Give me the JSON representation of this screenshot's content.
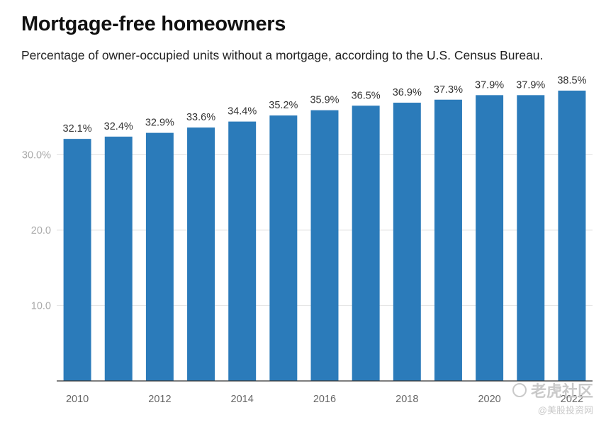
{
  "chart_data": {
    "type": "bar",
    "title": "Mortgage-free homeowners",
    "subtitle": "Percentage of owner-occupied units without a mortgage, according to the U.S. Census Bureau.",
    "categories": [
      "2010",
      "2011",
      "2012",
      "2013",
      "2014",
      "2015",
      "2016",
      "2017",
      "2018",
      "2019",
      "2020",
      "2021",
      "2022"
    ],
    "values": [
      32.1,
      32.4,
      32.9,
      33.6,
      34.4,
      35.2,
      35.9,
      36.5,
      36.9,
      37.3,
      37.9,
      37.9,
      38.5
    ],
    "data_labels": [
      "32.1%",
      "32.4%",
      "32.9%",
      "33.6%",
      "34.4%",
      "35.2%",
      "35.9%",
      "36.5%",
      "36.9%",
      "37.3%",
      "37.9%",
      "37.9%",
      "38.5%"
    ],
    "x_tick_labels": [
      "2010",
      "2012",
      "2014",
      "2016",
      "2018",
      "2020",
      "2022"
    ],
    "y_ticks": [
      10,
      20,
      30
    ],
    "y_tick_labels": [
      "10.0",
      "20.0",
      "30.0%"
    ],
    "ylim": [
      0,
      40
    ],
    "xlabel": "",
    "ylabel": "",
    "grid": true,
    "bar_color": "#2b7bba"
  },
  "watermark": {
    "main": "老虎社区",
    "sub": "@美股投资网"
  }
}
